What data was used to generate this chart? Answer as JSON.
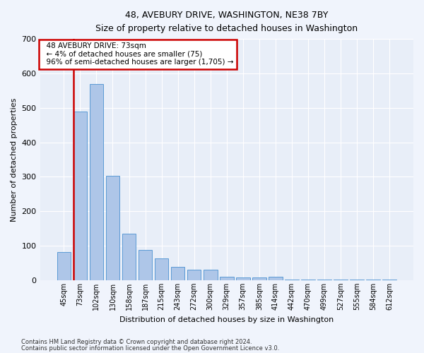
{
  "title": "48, AVEBURY DRIVE, WASHINGTON, NE38 7BY",
  "subtitle": "Size of property relative to detached houses in Washington",
  "xlabel": "Distribution of detached houses by size in Washington",
  "ylabel": "Number of detached properties",
  "footnote1": "Contains HM Land Registry data © Crown copyright and database right 2024.",
  "footnote2": "Contains public sector information licensed under the Open Government Licence v3.0.",
  "annotation_title": "48 AVEBURY DRIVE: 73sqm",
  "annotation_line1": "← 4% of detached houses are smaller (75)",
  "annotation_line2": "96% of semi-detached houses are larger (1,705) →",
  "bar_color": "#aec6e8",
  "bar_edge_color": "#5b9bd5",
  "annotation_box_edge_color": "#cc0000",
  "red_line_color": "#cc0000",
  "background_color": "#e8eef8",
  "grid_color": "#ffffff",
  "fig_bg_color": "#f0f4fc",
  "categories": [
    "45sqm",
    "73sqm",
    "102sqm",
    "130sqm",
    "158sqm",
    "187sqm",
    "215sqm",
    "243sqm",
    "272sqm",
    "300sqm",
    "329sqm",
    "357sqm",
    "385sqm",
    "414sqm",
    "442sqm",
    "470sqm",
    "499sqm",
    "527sqm",
    "555sqm",
    "584sqm",
    "612sqm"
  ],
  "values": [
    82,
    490,
    570,
    302,
    135,
    87,
    64,
    38,
    30,
    30,
    10,
    7,
    7,
    11,
    2,
    2,
    2,
    2,
    2,
    2,
    2
  ],
  "highlight_index": 1,
  "ylim": [
    0,
    700
  ],
  "yticks": [
    0,
    100,
    200,
    300,
    400,
    500,
    600,
    700
  ]
}
